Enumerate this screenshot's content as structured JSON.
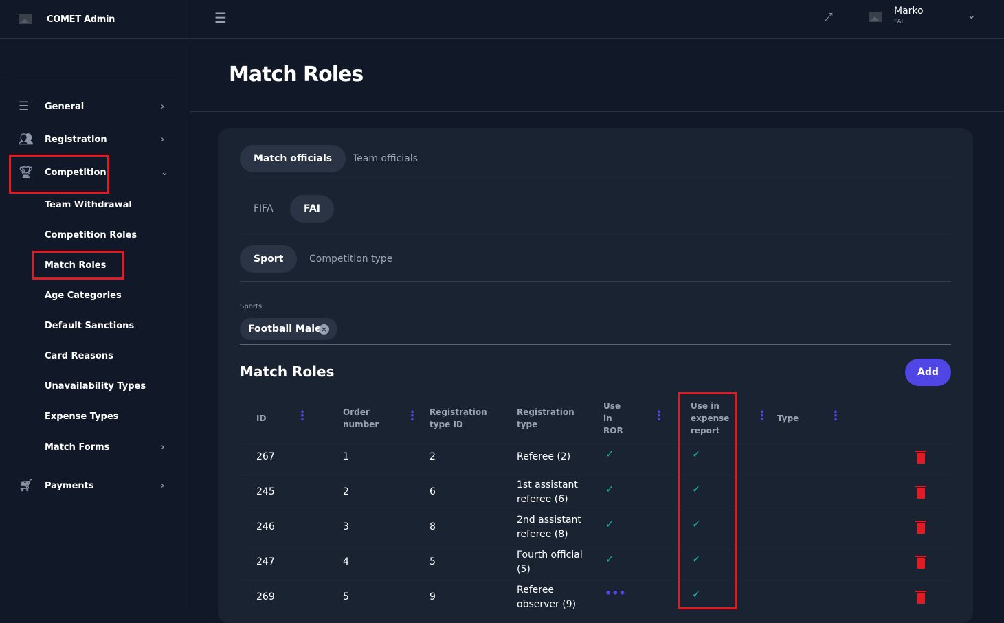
{
  "app": {
    "title": "COMET Admin"
  },
  "user": {
    "name": "Marko",
    "org": "FAI"
  },
  "sidebar": {
    "items": [
      {
        "label": "General",
        "icon": "sliders-icon"
      },
      {
        "label": "Registration",
        "icon": "users-icon"
      },
      {
        "label": "Competition",
        "icon": "trophy-icon"
      },
      {
        "label": "Payments",
        "icon": "cart-icon"
      }
    ],
    "sub": [
      "Team Withdrawal",
      "Competition Roles",
      "Match Roles",
      "Age Categories",
      "Default Sanctions",
      "Card Reasons",
      "Unavailability Types",
      "Expense Types",
      "Match Forms"
    ]
  },
  "page": {
    "title": "Match Roles"
  },
  "tabs1": [
    "Match officials",
    "Team officials"
  ],
  "tabs2": [
    "FIFA",
    "FAI"
  ],
  "tabs3": [
    "Sport",
    "Competition type"
  ],
  "sports": {
    "label": "Sports",
    "chip": "Football Male"
  },
  "section": {
    "title": "Match Roles",
    "add": "Add"
  },
  "table": {
    "headers": [
      "ID",
      "Order number",
      "Registration type ID",
      "Registration type",
      "Use in ROR",
      "Use in expense report",
      "Type"
    ],
    "rows": [
      {
        "id": "267",
        "order": "1",
        "rtid": "2",
        "rt": "Referee (2)",
        "ror": "check",
        "exp": "check"
      },
      {
        "id": "245",
        "order": "2",
        "rtid": "6",
        "rt": "1st assistant referee (6)",
        "ror": "check",
        "exp": "check"
      },
      {
        "id": "246",
        "order": "3",
        "rtid": "8",
        "rt": "2nd assistant referee (8)",
        "ror": "check",
        "exp": "check"
      },
      {
        "id": "247",
        "order": "4",
        "rtid": "5",
        "rt": "Fourth official (5)",
        "ror": "check",
        "exp": "check"
      },
      {
        "id": "269",
        "order": "5",
        "rtid": "9",
        "rt": "Referee observer (9)",
        "ror": "loading",
        "exp": "check"
      }
    ]
  },
  "colors": {
    "accent": "#4f46e5",
    "check": "#14b8a6",
    "delete": "#e01b24",
    "highlight": "#e01b24"
  }
}
